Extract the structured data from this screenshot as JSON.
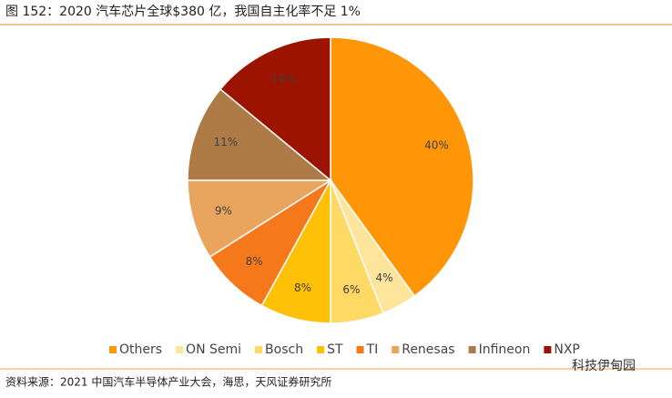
{
  "title": "图 152：2020 汽车芯片全球$380 亿，我国自主化率不足 1%",
  "source": "资料来源：2021 中国汽车半导体产业大会，海思，天风证券研究所",
  "watermark": "科技伊甸园",
  "chart_data": {
    "type": "pie",
    "categories": [
      "Others",
      "ON Semi",
      "Bosch",
      "ST",
      "TI",
      "Renesas",
      "Infineon",
      "NXP"
    ],
    "values": [
      40,
      4,
      6,
      8,
      8,
      9,
      11,
      14
    ],
    "value_labels": [
      "40%",
      "4%",
      "6%",
      "8%",
      "8%",
      "9%",
      "11%",
      "14%"
    ],
    "colors": [
      "#FF9607",
      "#FFE59C",
      "#FFD966",
      "#FFC107",
      "#F5791A",
      "#E9A55D",
      "#AE7B46",
      "#9C1300"
    ],
    "legend": "bottom"
  }
}
